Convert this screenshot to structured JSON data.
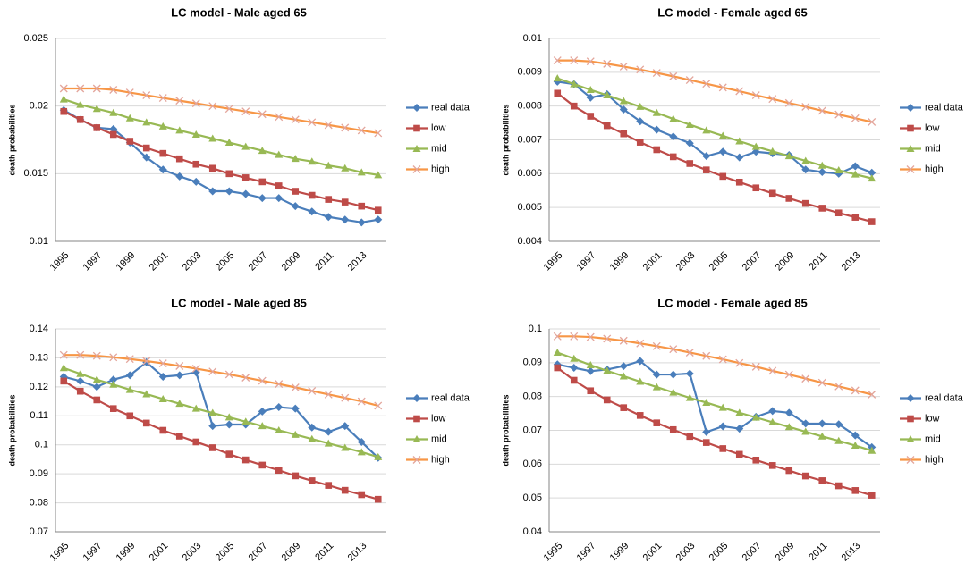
{
  "chart_data": [
    {
      "type": "line",
      "title": "LC model - Male aged 65",
      "y_label": "death probabilities",
      "categories": [
        "1995",
        null,
        "1997",
        null,
        "1999",
        null,
        "2001",
        null,
        "2003",
        null,
        "2005",
        null,
        "2007",
        null,
        "2009",
        null,
        "2011",
        null,
        "2013",
        null
      ],
      "ylim": [
        0.01,
        0.025
      ],
      "yticks": [
        0.01,
        0.015,
        0.02,
        0.025
      ],
      "grid": true,
      "legend": "right",
      "series": [
        {
          "name": "real data",
          "color": "#4a7ebb",
          "marker": "diamond",
          "values": [
            0.0197,
            0.019,
            0.0184,
            0.0183,
            0.0173,
            0.0162,
            0.0153,
            0.0148,
            0.0144,
            0.0137,
            0.0137,
            0.0135,
            0.0132,
            0.0132,
            0.0126,
            0.0122,
            0.0118,
            0.0116,
            0.0114,
            0.0116
          ]
        },
        {
          "name": "low",
          "color": "#be4b48",
          "marker": "square",
          "values": [
            0.0196,
            0.019,
            0.0184,
            0.0179,
            0.0174,
            0.0169,
            0.0165,
            0.0161,
            0.0157,
            0.0154,
            0.015,
            0.0147,
            0.0144,
            0.0141,
            0.0137,
            0.0134,
            0.0131,
            0.0129,
            0.0126,
            0.0123
          ]
        },
        {
          "name": "mid",
          "color": "#98b954",
          "marker": "triangle",
          "values": [
            0.0205,
            0.0201,
            0.0198,
            0.0195,
            0.0191,
            0.0188,
            0.0185,
            0.0182,
            0.0179,
            0.0176,
            0.0173,
            0.017,
            0.0167,
            0.0164,
            0.0161,
            0.0159,
            0.0156,
            0.0154,
            0.0151,
            0.0149
          ]
        },
        {
          "name": "high",
          "color": "#f79646",
          "marker": "x",
          "values": [
            0.0213,
            0.0213,
            0.0213,
            0.0212,
            0.021,
            0.0208,
            0.0206,
            0.0204,
            0.0202,
            0.02,
            0.0198,
            0.0196,
            0.0194,
            0.0192,
            0.019,
            0.0188,
            0.0186,
            0.0184,
            0.0182,
            0.018
          ]
        }
      ]
    },
    {
      "type": "line",
      "title": "LC model - Female aged 65",
      "y_label": "death probabilities",
      "categories": [
        "1995",
        null,
        "1997",
        null,
        "1999",
        null,
        "2001",
        null,
        "2003",
        null,
        "2005",
        null,
        "2007",
        null,
        "2009",
        null,
        "2011",
        null,
        "2013",
        null
      ],
      "ylim": [
        0.004,
        0.01
      ],
      "yticks": [
        0.004,
        0.005,
        0.006,
        0.007,
        0.008,
        0.009,
        0.01
      ],
      "grid": true,
      "legend": "right",
      "series": [
        {
          "name": "real data",
          "color": "#4a7ebb",
          "marker": "diamond",
          "values": [
            0.00872,
            0.00865,
            0.00825,
            0.00835,
            0.0079,
            0.00755,
            0.0073,
            0.0071,
            0.0069,
            0.00652,
            0.00665,
            0.00648,
            0.00665,
            0.0066,
            0.00655,
            0.00612,
            0.00605,
            0.006,
            0.00622,
            0.00603
          ]
        },
        {
          "name": "low",
          "color": "#be4b48",
          "marker": "square",
          "values": [
            0.00838,
            0.008,
            0.0077,
            0.00742,
            0.00718,
            0.00693,
            0.00671,
            0.0065,
            0.0063,
            0.00611,
            0.00592,
            0.00575,
            0.00558,
            0.00542,
            0.00527,
            0.00512,
            0.00498,
            0.00484,
            0.00471,
            0.00458
          ]
        },
        {
          "name": "mid",
          "color": "#98b954",
          "marker": "triangle",
          "values": [
            0.00882,
            0.00865,
            0.00848,
            0.00832,
            0.00815,
            0.00798,
            0.0078,
            0.00762,
            0.00745,
            0.00728,
            0.00712,
            0.00696,
            0.0068,
            0.00666,
            0.00652,
            0.00638,
            0.00624,
            0.0061,
            0.00598,
            0.00586
          ]
        },
        {
          "name": "high",
          "color": "#f79646",
          "marker": "x",
          "values": [
            0.00935,
            0.00935,
            0.00932,
            0.00925,
            0.00917,
            0.00908,
            0.00898,
            0.00888,
            0.00877,
            0.00866,
            0.00855,
            0.00844,
            0.00832,
            0.00821,
            0.00809,
            0.00798,
            0.00786,
            0.00775,
            0.00764,
            0.00753
          ]
        }
      ]
    },
    {
      "type": "line",
      "title": "LC model - Male aged 85",
      "y_label": "death probabilities",
      "categories": [
        "1995",
        null,
        "1997",
        null,
        "1999",
        null,
        "2001",
        null,
        "2003",
        null,
        "2005",
        null,
        "2007",
        null,
        "2009",
        null,
        "2011",
        null,
        "2013",
        null
      ],
      "ylim": [
        0.07,
        0.14
      ],
      "yticks": [
        0.07,
        0.08,
        0.09,
        0.1,
        0.11,
        0.12,
        0.13,
        0.14
      ],
      "grid": true,
      "legend": "right",
      "series": [
        {
          "name": "real data",
          "color": "#4a7ebb",
          "marker": "diamond",
          "values": [
            0.1235,
            0.122,
            0.12,
            0.1225,
            0.124,
            0.1285,
            0.1235,
            0.124,
            0.125,
            0.1065,
            0.107,
            0.107,
            0.1115,
            0.113,
            0.1125,
            0.106,
            0.1045,
            0.1065,
            0.101,
            0.0955
          ]
        },
        {
          "name": "low",
          "color": "#be4b48",
          "marker": "square",
          "values": [
            0.122,
            0.1185,
            0.1155,
            0.1125,
            0.11,
            0.1075,
            0.105,
            0.103,
            0.101,
            0.099,
            0.0968,
            0.0948,
            0.093,
            0.0912,
            0.0893,
            0.0876,
            0.086,
            0.0843,
            0.0828,
            0.0812
          ]
        },
        {
          "name": "mid",
          "color": "#98b954",
          "marker": "triangle",
          "values": [
            0.1265,
            0.1245,
            0.1225,
            0.1208,
            0.119,
            0.1175,
            0.1158,
            0.1142,
            0.1125,
            0.111,
            0.1095,
            0.108,
            0.1065,
            0.105,
            0.1035,
            0.102,
            0.1005,
            0.099,
            0.0975,
            0.0958
          ]
        },
        {
          "name": "high",
          "color": "#f79646",
          "marker": "x",
          "values": [
            0.131,
            0.131,
            0.1307,
            0.1302,
            0.1296,
            0.1289,
            0.1281,
            0.1272,
            0.1263,
            0.1253,
            0.1243,
            0.1232,
            0.1221,
            0.121,
            0.1198,
            0.1186,
            0.1174,
            0.1162,
            0.115,
            0.1135
          ]
        }
      ]
    },
    {
      "type": "line",
      "title": "LC model -  Female aged 85",
      "y_label": "death probabilities",
      "categories": [
        "1995",
        null,
        "1997",
        null,
        "1999",
        null,
        "2001",
        null,
        "2003",
        null,
        "2005",
        null,
        "2007",
        null,
        "2009",
        null,
        "2011",
        null,
        "2013",
        null
      ],
      "ylim": [
        0.04,
        0.1
      ],
      "yticks": [
        0.04,
        0.05,
        0.06,
        0.07,
        0.08,
        0.09,
        0.1
      ],
      "grid": true,
      "legend": "right",
      "series": [
        {
          "name": "real data",
          "color": "#4a7ebb",
          "marker": "diamond",
          "values": [
            0.0895,
            0.0885,
            0.0875,
            0.088,
            0.089,
            0.0905,
            0.0865,
            0.0865,
            0.0868,
            0.0695,
            0.0712,
            0.0705,
            0.074,
            0.0757,
            0.0752,
            0.072,
            0.072,
            0.0718,
            0.0685,
            0.065
          ]
        },
        {
          "name": "low",
          "color": "#be4b48",
          "marker": "square",
          "values": [
            0.0885,
            0.0848,
            0.0817,
            0.079,
            0.0767,
            0.0744,
            0.0722,
            0.0702,
            0.0682,
            0.0664,
            0.0646,
            0.0629,
            0.0612,
            0.0596,
            0.0581,
            0.0565,
            0.0551,
            0.0536,
            0.0522,
            0.0508
          ]
        },
        {
          "name": "mid",
          "color": "#98b954",
          "marker": "triangle",
          "values": [
            0.093,
            0.0912,
            0.0893,
            0.0876,
            0.086,
            0.0844,
            0.0828,
            0.0812,
            0.0796,
            0.0782,
            0.0767,
            0.0752,
            0.0738,
            0.0724,
            0.071,
            0.0696,
            0.0682,
            0.0669,
            0.0655,
            0.064
          ]
        },
        {
          "name": "high",
          "color": "#f79646",
          "marker": "x",
          "values": [
            0.0978,
            0.0978,
            0.0976,
            0.0971,
            0.0965,
            0.0957,
            0.0949,
            0.094,
            0.093,
            0.092,
            0.091,
            0.0899,
            0.0888,
            0.0876,
            0.0865,
            0.0853,
            0.0841,
            0.083,
            0.0818,
            0.0806
          ]
        }
      ]
    }
  ]
}
